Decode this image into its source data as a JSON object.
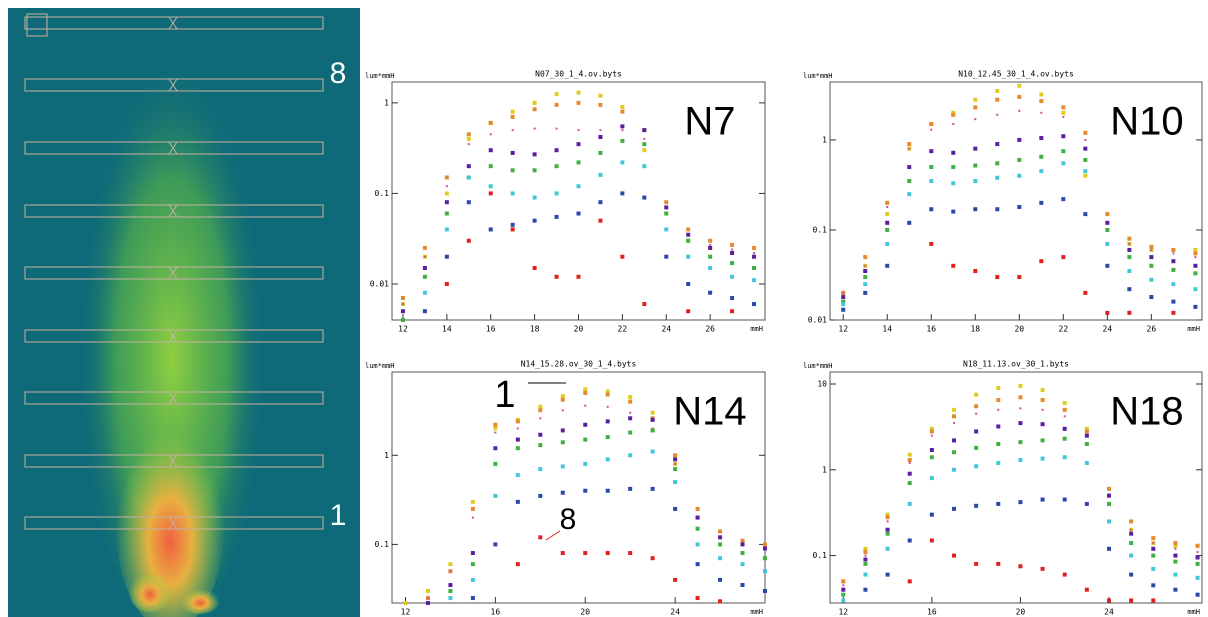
{
  "image": {
    "labels": [
      "8",
      "1"
    ]
  },
  "chart_data": [
    {
      "type": "scatter",
      "title": "N07_30_1_4.ov.byts",
      "label": "N7",
      "y_label": "lum*mmH",
      "x_label": "mmH",
      "log_y": true,
      "xlim": [
        11.5,
        28.5
      ],
      "ylim": [
        0.004,
        1.7
      ],
      "xticks": [
        12,
        14,
        16,
        18,
        20,
        22,
        24,
        26
      ],
      "yticks": [
        0.01,
        0.1,
        1
      ],
      "x": [
        12,
        13,
        14,
        15,
        16,
        17,
        18,
        19,
        20,
        21,
        22,
        23,
        24,
        25,
        26,
        27,
        28
      ],
      "series": [
        {
          "color": "#e0cc20",
          "values": [
            0.006,
            0.02,
            0.1,
            0.4,
            0.6,
            0.8,
            1.0,
            1.25,
            1.3,
            1.2,
            0.9,
            0.3,
            0.06,
            0.03,
            0.025,
            0.022,
            0.02
          ]
        },
        {
          "color": "#e68a30",
          "values": [
            0.007,
            0.025,
            0.15,
            0.45,
            0.6,
            0.7,
            0.85,
            0.95,
            1.0,
            0.95,
            0.8,
            0.5,
            0.08,
            0.04,
            0.03,
            0.027,
            0.025
          ]
        },
        {
          "color": "#d050a0",
          "values": [
            0.006,
            0.02,
            0.12,
            0.35,
            0.45,
            0.5,
            0.52,
            0.52,
            0.5,
            0.5,
            0.5,
            0.4,
            0.06,
            0.035,
            0.027,
            0.024,
            0.022
          ]
        },
        {
          "color": "#5a1fa0",
          "values": [
            0.005,
            0.015,
            0.08,
            0.2,
            0.3,
            0.28,
            0.27,
            0.3,
            0.35,
            0.42,
            0.55,
            0.5,
            0.07,
            0.035,
            0.025,
            0.022,
            0.02
          ]
        },
        {
          "color": "#40b040",
          "values": [
            0.004,
            0.012,
            0.06,
            0.15,
            0.2,
            0.18,
            0.18,
            0.2,
            0.22,
            0.28,
            0.38,
            0.35,
            0.06,
            0.03,
            0.02,
            0.017,
            0.015
          ]
        },
        {
          "color": "#40c8d8",
          "values": [
            null,
            0.008,
            0.04,
            0.15,
            0.12,
            0.1,
            0.09,
            0.1,
            0.12,
            0.16,
            0.22,
            0.2,
            0.04,
            0.02,
            0.015,
            0.012,
            0.011
          ]
        },
        {
          "color": "#2a48a8",
          "values": [
            null,
            0.005,
            0.02,
            0.08,
            0.04,
            0.045,
            0.05,
            0.055,
            0.06,
            0.08,
            0.1,
            0.09,
            0.02,
            0.01,
            0.008,
            0.007,
            0.006
          ]
        },
        {
          "color": "#e02020",
          "values": [
            null,
            null,
            0.01,
            0.03,
            0.1,
            0.04,
            0.015,
            0.012,
            0.012,
            0.05,
            0.02,
            0.006,
            null,
            0.005,
            null,
            0.005,
            null
          ]
        }
      ]
    },
    {
      "type": "scatter",
      "title": "N10_12.45_30_1_4.ov.byts",
      "label": "N10",
      "y_label": "lum*mmH",
      "x_label": "mmH",
      "log_y": true,
      "xlim": [
        11.4,
        28.3
      ],
      "ylim": [
        0.01,
        4.4
      ],
      "xticks": [
        12,
        14,
        16,
        18,
        20,
        22,
        24,
        26
      ],
      "yticks": [
        0.01,
        0.1,
        1
      ],
      "x": [
        12,
        13,
        14,
        15,
        16,
        17,
        18,
        19,
        20,
        21,
        22,
        23,
        24,
        25,
        26,
        27,
        28
      ],
      "series": [
        {
          "color": "#e0cc20",
          "values": [
            0.02,
            0.04,
            0.15,
            0.8,
            1.5,
            2.0,
            2.8,
            3.5,
            4.0,
            3.2,
            2.0,
            0.4,
            0.1,
            0.07,
            0.06,
            0.06,
            0.06
          ]
        },
        {
          "color": "#e68a30",
          "values": [
            0.02,
            0.05,
            0.2,
            0.9,
            1.5,
            1.9,
            2.3,
            2.8,
            3.0,
            2.7,
            2.3,
            1.2,
            0.15,
            0.08,
            0.065,
            0.06,
            0.055
          ]
        },
        {
          "color": "#d050a0",
          "values": [
            0.02,
            0.04,
            0.18,
            0.8,
            1.3,
            1.5,
            1.7,
            1.9,
            2.1,
            2.0,
            1.8,
            1.0,
            0.12,
            0.07,
            0.06,
            0.055,
            0.05
          ]
        },
        {
          "color": "#5a1fa0",
          "values": [
            0.018,
            0.035,
            0.12,
            0.5,
            0.75,
            0.72,
            0.8,
            0.9,
            1.0,
            1.05,
            1.1,
            0.8,
            0.12,
            0.06,
            0.05,
            0.045,
            0.04
          ]
        },
        {
          "color": "#40b040",
          "values": [
            0.016,
            0.03,
            0.1,
            0.35,
            0.5,
            0.5,
            0.52,
            0.55,
            0.6,
            0.65,
            0.75,
            0.6,
            0.1,
            0.05,
            0.04,
            0.036,
            0.033
          ]
        },
        {
          "color": "#40c8d8",
          "values": [
            0.015,
            0.025,
            0.07,
            0.25,
            0.35,
            0.33,
            0.35,
            0.38,
            0.4,
            0.45,
            0.55,
            0.45,
            0.07,
            0.035,
            0.028,
            0.025,
            0.022
          ]
        },
        {
          "color": "#2a48a8",
          "values": [
            0.013,
            0.02,
            0.04,
            0.12,
            0.17,
            0.16,
            0.17,
            0.17,
            0.18,
            0.2,
            0.22,
            0.15,
            0.04,
            0.022,
            0.018,
            0.016,
            0.014
          ]
        },
        {
          "color": "#e02020",
          "values": [
            null,
            null,
            null,
            null,
            0.07,
            0.04,
            0.035,
            0.03,
            0.03,
            0.045,
            0.05,
            0.02,
            0.012,
            0.012,
            null,
            0.012,
            null
          ]
        }
      ]
    },
    {
      "type": "scatter",
      "title": "N14_15.28.ov_30_1_4.byts",
      "label": "N14",
      "y_label": "lum*mmH",
      "x_label": "mmH",
      "log_y": true,
      "annotations": [
        "1",
        "8"
      ],
      "xlim": [
        11.4,
        28
      ],
      "ylim": [
        0.022,
        8.6
      ],
      "xticks": [
        12,
        16,
        20,
        24
      ],
      "yticks": [
        0.1,
        1
      ],
      "x": [
        12,
        13,
        14,
        15,
        16,
        17,
        18,
        19,
        20,
        21,
        22,
        23,
        24,
        25,
        26,
        27,
        28
      ],
      "series": [
        {
          "color": "#e0cc20",
          "values": [
            0.022,
            0.03,
            0.06,
            0.3,
            2.0,
            2.5,
            3.5,
            4.6,
            5.5,
            5.2,
            4.5,
            3.0,
            0.8,
            0.2,
            0.12,
            0.1,
            0.09
          ]
        },
        {
          "color": "#e68a30",
          "values": [
            null,
            0.025,
            0.05,
            0.25,
            2.2,
            2.4,
            3.2,
            4.2,
            5.0,
            4.8,
            4.0,
            2.6,
            1.0,
            0.25,
            0.14,
            0.11,
            0.1
          ]
        },
        {
          "color": "#d050a0",
          "values": [
            null,
            0.025,
            0.05,
            0.2,
            1.8,
            2.0,
            2.6,
            3.2,
            3.6,
            3.5,
            3.0,
            2.0,
            0.8,
            0.2,
            0.12,
            0.1,
            0.09
          ]
        },
        {
          "color": "#5a1fa0",
          "values": [
            null,
            0.022,
            0.035,
            0.08,
            1.2,
            1.5,
            1.7,
            1.9,
            2.2,
            2.4,
            2.6,
            2.5,
            0.9,
            0.2,
            0.12,
            0.1,
            0.09
          ]
        },
        {
          "color": "#40b040",
          "values": [
            null,
            null,
            0.03,
            0.06,
            0.8,
            1.2,
            1.3,
            1.4,
            1.5,
            1.6,
            1.8,
            1.9,
            0.7,
            0.15,
            0.1,
            0.08,
            0.07
          ]
        },
        {
          "color": "#40c8d8",
          "values": [
            null,
            null,
            0.025,
            0.04,
            0.35,
            0.6,
            0.7,
            0.75,
            0.8,
            0.9,
            1.0,
            1.1,
            0.5,
            0.1,
            0.07,
            0.06,
            0.05
          ]
        },
        {
          "color": "#2a48a8",
          "values": [
            null,
            null,
            null,
            0.025,
            0.1,
            0.3,
            0.35,
            0.38,
            0.4,
            0.4,
            0.42,
            0.42,
            0.25,
            0.06,
            0.04,
            0.035,
            0.03
          ]
        },
        {
          "color": "#e02020",
          "values": [
            null,
            null,
            null,
            null,
            null,
            0.06,
            0.12,
            0.08,
            0.08,
            0.08,
            0.08,
            0.07,
            0.04,
            0.025,
            0.023,
            null,
            null
          ]
        }
      ]
    },
    {
      "type": "scatter",
      "title": "N18_11.13.ov_30_1.byts",
      "label": "N18",
      "y_label": "lum*mmH",
      "x_label": "mmH",
      "log_y": true,
      "xlim": [
        11.4,
        28.2
      ],
      "ylim": [
        0.028,
        13.8
      ],
      "xticks": [
        12,
        16,
        20,
        24
      ],
      "yticks": [
        0.1,
        1,
        10
      ],
      "x": [
        12,
        13,
        14,
        15,
        16,
        17,
        18,
        19,
        20,
        21,
        22,
        23,
        24,
        25,
        26,
        27,
        28
      ],
      "series": [
        {
          "color": "#e0cc20",
          "values": [
            0.05,
            0.12,
            0.3,
            1.5,
            3.0,
            5.0,
            7.5,
            9.0,
            9.5,
            8.5,
            6.0,
            3.0,
            0.5,
            0.2,
            0.14,
            0.13,
            0.13
          ]
        },
        {
          "color": "#e68a30",
          "values": [
            0.05,
            0.11,
            0.28,
            1.3,
            2.8,
            4.2,
            5.5,
            6.5,
            7.0,
            6.5,
            5.0,
            2.8,
            0.6,
            0.25,
            0.16,
            0.14,
            0.13
          ]
        },
        {
          "color": "#d050a0",
          "values": [
            0.045,
            0.1,
            0.25,
            1.2,
            2.5,
            3.5,
            4.5,
            5.0,
            5.2,
            5.0,
            4.2,
            2.5,
            0.5,
            0.2,
            0.14,
            0.12,
            0.11
          ]
        },
        {
          "color": "#5a1fa0",
          "values": [
            0.04,
            0.09,
            0.2,
            0.9,
            1.7,
            2.2,
            2.8,
            3.2,
            3.5,
            3.4,
            3.0,
            2.5,
            0.5,
            0.18,
            0.12,
            0.1,
            0.095
          ]
        },
        {
          "color": "#40b040",
          "values": [
            0.035,
            0.08,
            0.18,
            0.7,
            1.4,
            1.6,
            1.8,
            2.0,
            2.1,
            2.2,
            2.3,
            2.0,
            0.4,
            0.14,
            0.1,
            0.085,
            0.08
          ]
        },
        {
          "color": "#40c8d8",
          "values": [
            0.03,
            0.06,
            0.12,
            0.4,
            0.8,
            1.0,
            1.1,
            1.2,
            1.3,
            1.35,
            1.4,
            1.2,
            0.25,
            0.1,
            0.07,
            0.06,
            0.055
          ]
        },
        {
          "color": "#2a48a8",
          "values": [
            null,
            0.04,
            0.06,
            0.15,
            0.3,
            0.35,
            0.38,
            0.4,
            0.42,
            0.45,
            0.45,
            0.4,
            0.12,
            0.06,
            0.045,
            0.04,
            0.035
          ]
        },
        {
          "color": "#e02020",
          "values": [
            null,
            null,
            null,
            0.05,
            0.15,
            0.1,
            0.08,
            0.08,
            0.075,
            0.07,
            0.06,
            0.04,
            0.03,
            0.03,
            0.03,
            null,
            null
          ]
        }
      ]
    }
  ]
}
